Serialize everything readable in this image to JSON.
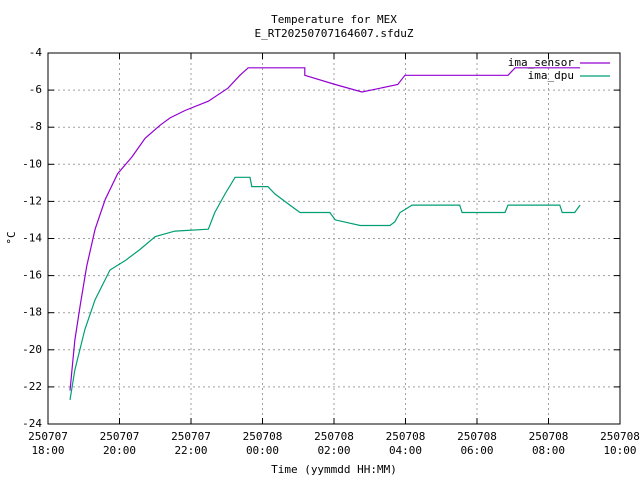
{
  "chart_data": {
    "type": "line",
    "title": "Temperature for MEX",
    "subtitle": "E_RT20250707164607.sfduZ",
    "x_label": "Time (yymmdd HH:MM)",
    "y_label": "°C",
    "xlim": [
      "250707 18:00",
      "250708 10:00"
    ],
    "xticks": [
      {
        "value": "250707 18:00",
        "label": [
          "250707",
          "18:00"
        ]
      },
      {
        "value": "250707 20:00",
        "label": [
          "250707",
          "20:00"
        ]
      },
      {
        "value": "250707 22:00",
        "label": [
          "250707",
          "22:00"
        ]
      },
      {
        "value": "250708 00:00",
        "label": [
          "250708",
          "00:00"
        ]
      },
      {
        "value": "250708 02:00",
        "label": [
          "250708",
          "02:00"
        ]
      },
      {
        "value": "250708 04:00",
        "label": [
          "250708",
          "04:00"
        ]
      },
      {
        "value": "250708 06:00",
        "label": [
          "250708",
          "06:00"
        ]
      },
      {
        "value": "250708 08:00",
        "label": [
          "250708",
          "08:00"
        ]
      },
      {
        "value": "250708 10:00",
        "label": [
          "250708",
          "10:00"
        ]
      }
    ],
    "ylim": [
      -24,
      -4
    ],
    "yticks": [
      -24,
      -22,
      -20,
      -18,
      -16,
      -14,
      -12,
      -10,
      -8,
      -6,
      -4
    ],
    "grid": true,
    "legend": "top-right",
    "series": [
      {
        "name": "ima_sensor",
        "color": "#9400d3",
        "x": [
          "250707 18:37",
          "250707 18:45",
          "250707 18:54",
          "250707 19:05",
          "250707 19:19",
          "250707 19:36",
          "250707 19:57",
          "250707 20:21",
          "250707 20:43",
          "250707 21:08",
          "250707 21:25",
          "250707 21:50",
          "250707 22:29",
          "250707 23:02",
          "250707 23:22",
          "250707 23:36",
          "250708 01:11",
          "250708 01:11",
          "250708 02:02",
          "250708 02:47",
          "250708 03:47",
          "250708 03:59",
          "250708 06:52",
          "250708 07:04",
          "250708 08:28",
          "250708 08:53"
        ],
        "values": [
          -22.2,
          -19.5,
          -17.6,
          -15.5,
          -13.5,
          -11.9,
          -10.5,
          -9.6,
          -8.6,
          -7.9,
          -7.5,
          -7.1,
          -6.6,
          -5.9,
          -5.2,
          -4.8,
          -4.8,
          -5.2,
          -5.7,
          -6.1,
          -5.7,
          -5.2,
          -5.2,
          -4.8,
          -4.8,
          -4.8
        ]
      },
      {
        "name": "ima_dpu",
        "color": "#009e73",
        "x": [
          "250707 18:37",
          "250707 18:45",
          "250707 19:02",
          "250707 19:19",
          "250707 19:44",
          "250707 20:09",
          "250707 20:34",
          "250707 21:00",
          "250707 21:33",
          "250707 22:29",
          "250707 22:40",
          "250707 22:57",
          "250707 23:14",
          "250707 23:39",
          "250707 23:42",
          "250708 00:09",
          "250708 00:21",
          "250708 00:46",
          "250708 01:03",
          "250708 01:53",
          "250708 02:02",
          "250708 02:44",
          "250708 03:34",
          "250708 03:42",
          "250708 03:51",
          "250708 04:11",
          "250708 05:31",
          "250708 05:35",
          "250708 06:47",
          "250708 06:52",
          "250708 08:19",
          "250708 08:23",
          "250708 08:44",
          "250708 08:53"
        ],
        "values": [
          -22.7,
          -21.1,
          -18.9,
          -17.3,
          -15.7,
          -15.2,
          -14.6,
          -13.9,
          -13.6,
          -13.5,
          -12.6,
          -11.6,
          -10.7,
          -10.7,
          -11.2,
          -11.2,
          -11.6,
          -12.2,
          -12.6,
          -12.6,
          -13.0,
          -13.3,
          -13.3,
          -13.1,
          -12.6,
          -12.2,
          -12.2,
          -12.6,
          -12.6,
          -12.2,
          -12.2,
          -12.6,
          -12.6,
          -12.2
        ]
      }
    ]
  }
}
